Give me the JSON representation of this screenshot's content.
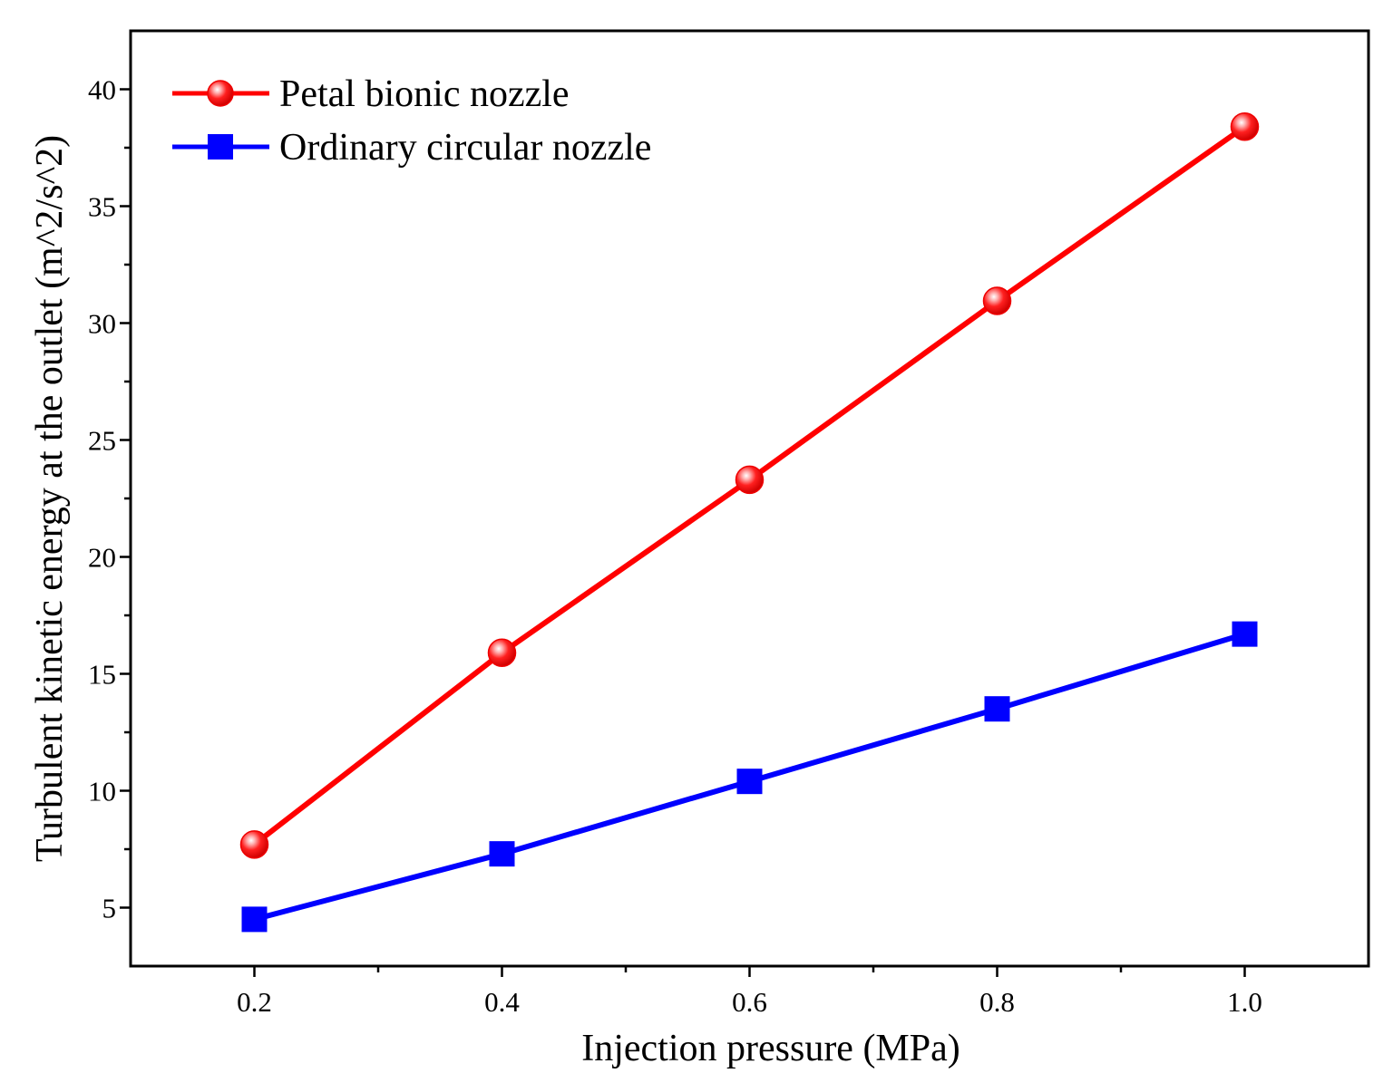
{
  "chart_data": {
    "type": "line",
    "title": "",
    "xlabel": "Injection pressure (MPa)",
    "ylabel": "Turbulent kinetic energy at the outlet (m^2/s^2)",
    "xlim": [
      0.1,
      1.1
    ],
    "ylim": [
      2.5,
      42.5
    ],
    "x_ticks": [
      0.2,
      0.4,
      0.6,
      0.8,
      1.0
    ],
    "x_tick_labels": [
      "0.2",
      "0.4",
      "0.6",
      "0.8",
      "1.0"
    ],
    "x_minor_ticks": [
      0.3,
      0.5,
      0.7,
      0.9
    ],
    "y_ticks": [
      5,
      10,
      15,
      20,
      25,
      30,
      35,
      40
    ],
    "y_tick_labels": [
      "5",
      "10",
      "15",
      "20",
      "25",
      "30",
      "35",
      "40"
    ],
    "y_minor_ticks": [
      7.5,
      12.5,
      17.5,
      22.5,
      27.5,
      32.5,
      37.5
    ],
    "grid": false,
    "legend_position": "top-left",
    "x": [
      0.2,
      0.4,
      0.6,
      0.8,
      1.0
    ],
    "series": [
      {
        "name": "Petal bionic nozzle",
        "values": [
          7.7,
          15.9,
          23.3,
          30.95,
          38.4
        ],
        "color": "#ff0000",
        "marker": "circle"
      },
      {
        "name": "Ordinary circular nozzle",
        "values": [
          4.5,
          7.3,
          10.4,
          13.5,
          16.7
        ],
        "color": "#0000ff",
        "marker": "square"
      }
    ]
  }
}
